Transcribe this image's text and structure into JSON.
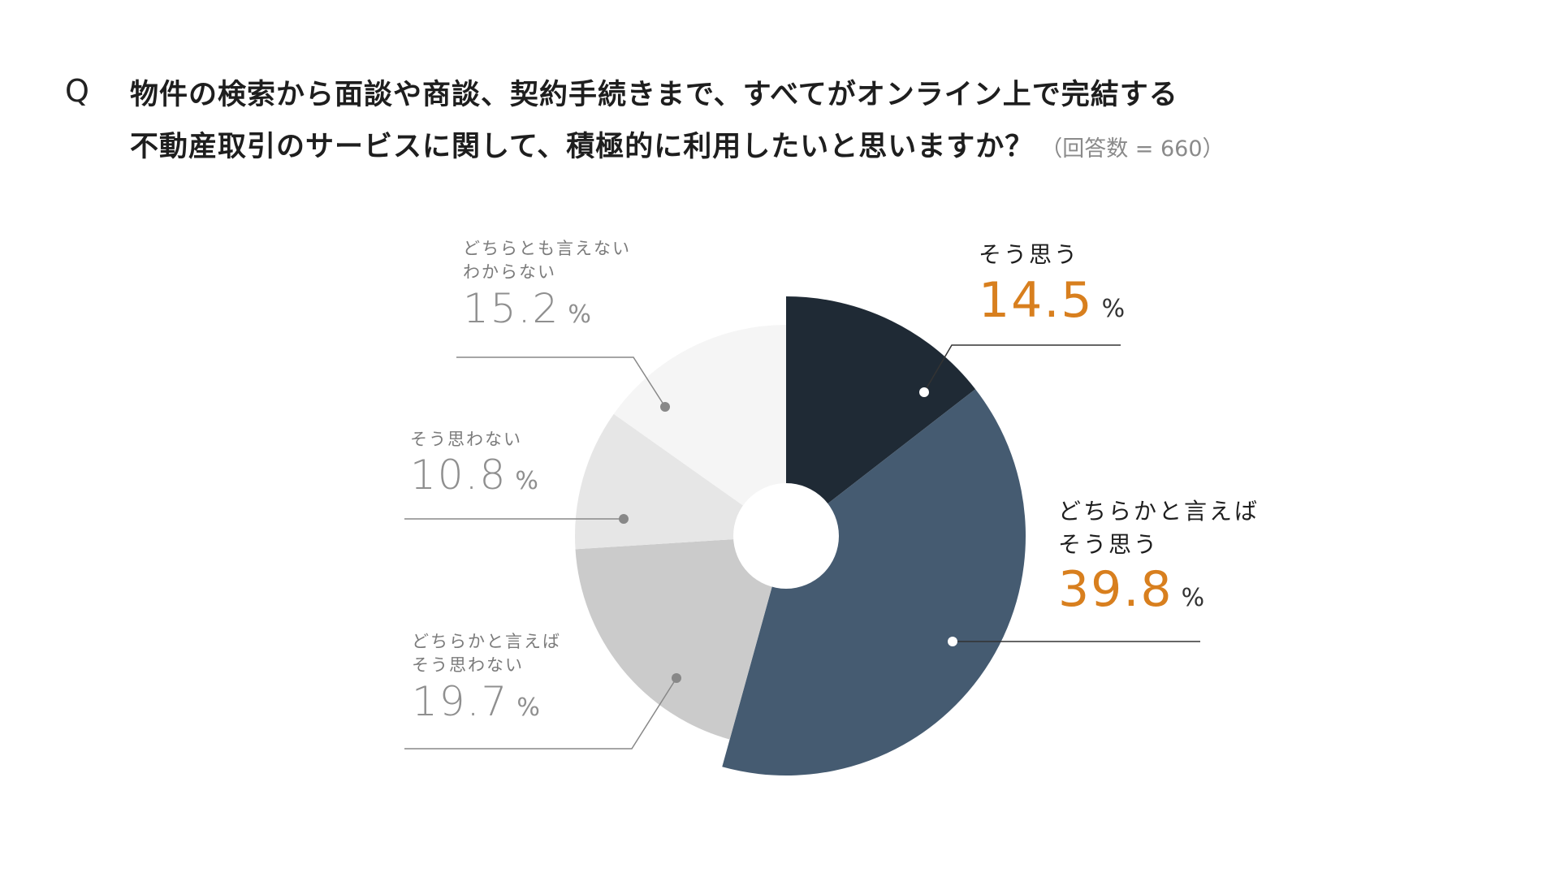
{
  "question": {
    "mark": "Q",
    "line1": "物件の検索から面談や商談、契約手続きまで、すべてがオンライン上で完結する",
    "line2": "不動産取引のサービスに関して、積極的に利用したいと思いますか？",
    "count": "（回答数 = 660）"
  },
  "chart_data": {
    "type": "pie",
    "style": "exploded donut",
    "slices": [
      {
        "label": "そう思う",
        "value": 14.5,
        "color": "#1f2a35"
      },
      {
        "label": "どちらかと言えば そう思う",
        "value": 39.8,
        "color": "#455b71"
      },
      {
        "label": "どちらかと言えば そう思わない",
        "value": 19.7,
        "color": "#cbcbcb"
      },
      {
        "label": "そう思わない",
        "value": 10.8,
        "color": "#e6e6e6"
      },
      {
        "label": "どちらとも言えない わからない",
        "value": 15.2,
        "color": "#f5f5f5"
      }
    ],
    "unit": "%",
    "highlight_color": "#d87f1e"
  },
  "labels": {
    "s1": {
      "line1": "そう思う",
      "value": "14.5",
      "unit": "%"
    },
    "s2": {
      "line1": "どちらかと言えば",
      "line2": "そう思う",
      "value": "39.8",
      "unit": "%"
    },
    "s3": {
      "line1": "どちらかと言えば",
      "line2": "そう思わない",
      "value": "19.7",
      "unit": "%"
    },
    "s4": {
      "line1": "そう思わない",
      "value": "10.8",
      "unit": "%"
    },
    "s5": {
      "line1": "どちらとも言えない",
      "line2": "わからない",
      "value": "15.2",
      "unit": "%"
    }
  }
}
